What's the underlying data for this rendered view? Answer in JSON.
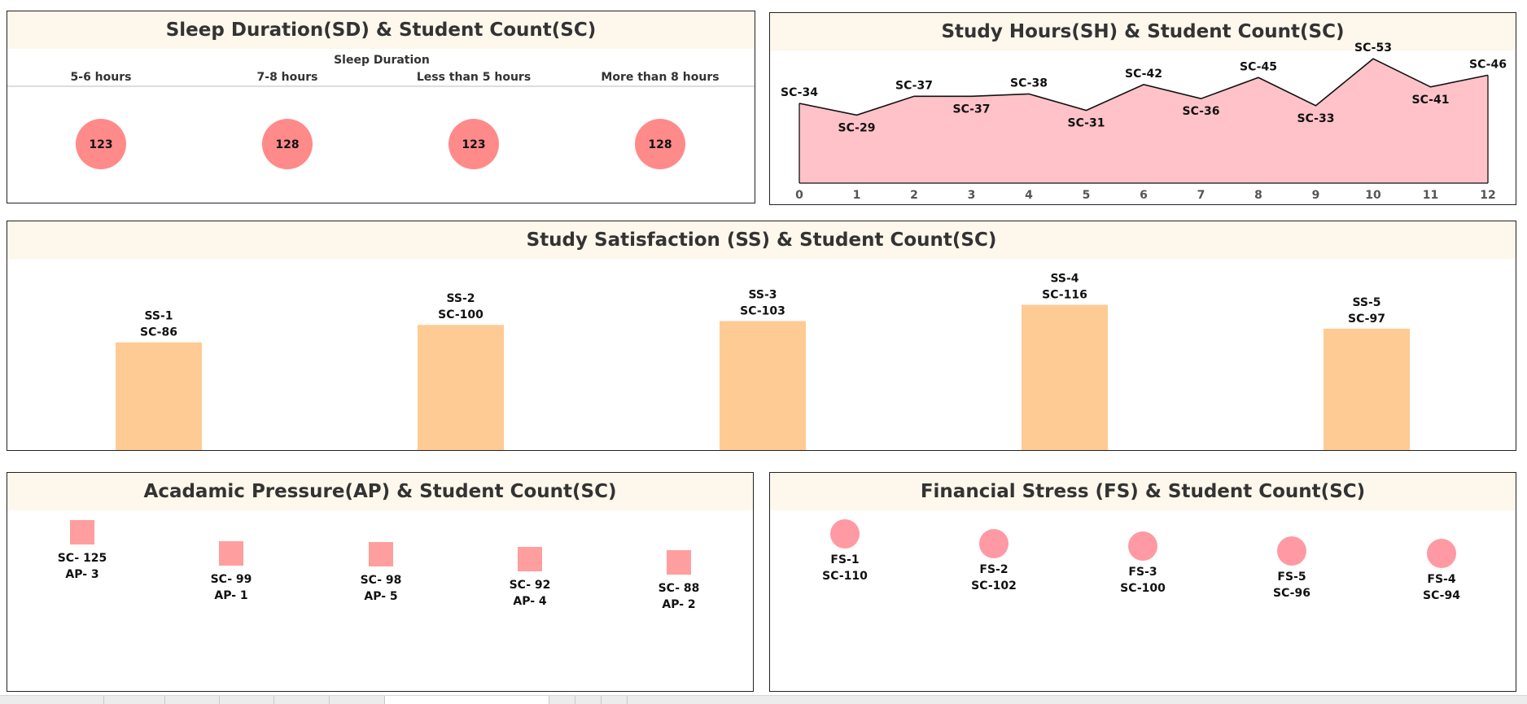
{
  "sleep": {
    "title": "Sleep Duration(SD) & Student Count(SC)",
    "header": "Sleep Duration",
    "chart_data": {
      "type": "scatter",
      "categories": [
        "5-6 hours",
        "7-8 hours",
        "Less than 5 hours",
        "More than 8 hours"
      ],
      "values": [
        123,
        128,
        123,
        128
      ]
    },
    "marker_color": "#ff8a8a"
  },
  "study_hours": {
    "title": "Study Hours(SH) & Student Count(SC)",
    "chart_data": {
      "type": "area",
      "x": [
        0,
        1,
        2,
        3,
        4,
        5,
        6,
        7,
        8,
        9,
        10,
        11,
        12
      ],
      "values": [
        34,
        29,
        37,
        37,
        38,
        31,
        42,
        36,
        45,
        33,
        53,
        41,
        46
      ],
      "labels": [
        "SC-34",
        "SC-29",
        "SC-37",
        "SC-37",
        "SC-38",
        "SC-31",
        "SC-42",
        "SC-36",
        "SC-45",
        "SC-33",
        "SC-53",
        "SC-41",
        "SC-46"
      ],
      "ylim": [
        0,
        60
      ]
    },
    "fill_color": "#ffc2c8"
  },
  "satisfaction": {
    "title": "Study Satisfaction (SS) & Student Count(SC)",
    "chart_data": {
      "type": "bar",
      "categories": [
        "SS-1",
        "SS-2",
        "SS-3",
        "SS-4",
        "SS-5"
      ],
      "values": [
        86,
        100,
        103,
        116,
        97
      ],
      "labels": [
        "SC-86",
        "SC-100",
        "SC-103",
        "SC-116",
        "SC-97"
      ],
      "ylim": [
        0,
        130
      ]
    },
    "bar_color": "#ffcb94"
  },
  "pressure": {
    "title": "Acadamic Pressure(AP) & Student Count(SC)",
    "chart_data": {
      "type": "scatter",
      "categories": [
        "AP- 3",
        "AP- 1",
        "AP- 5",
        "AP- 4",
        "AP- 2"
      ],
      "values": [
        125,
        99,
        98,
        92,
        88
      ],
      "labels": [
        "SC- 125",
        "SC- 99",
        "SC- 98",
        "SC- 92",
        "SC- 88"
      ]
    },
    "marker_color": "#ff9e9e"
  },
  "financial": {
    "title": "Financial Stress (FS) & Student Count(SC)",
    "chart_data": {
      "type": "scatter",
      "categories": [
        "FS-1",
        "FS-2",
        "FS-3",
        "FS-5",
        "FS-4"
      ],
      "values": [
        110,
        102,
        100,
        96,
        94
      ],
      "labels": [
        "SC-110",
        "SC-102",
        "SC-100",
        "SC-96",
        "SC-94"
      ]
    },
    "marker_color": "#ff99a3"
  }
}
